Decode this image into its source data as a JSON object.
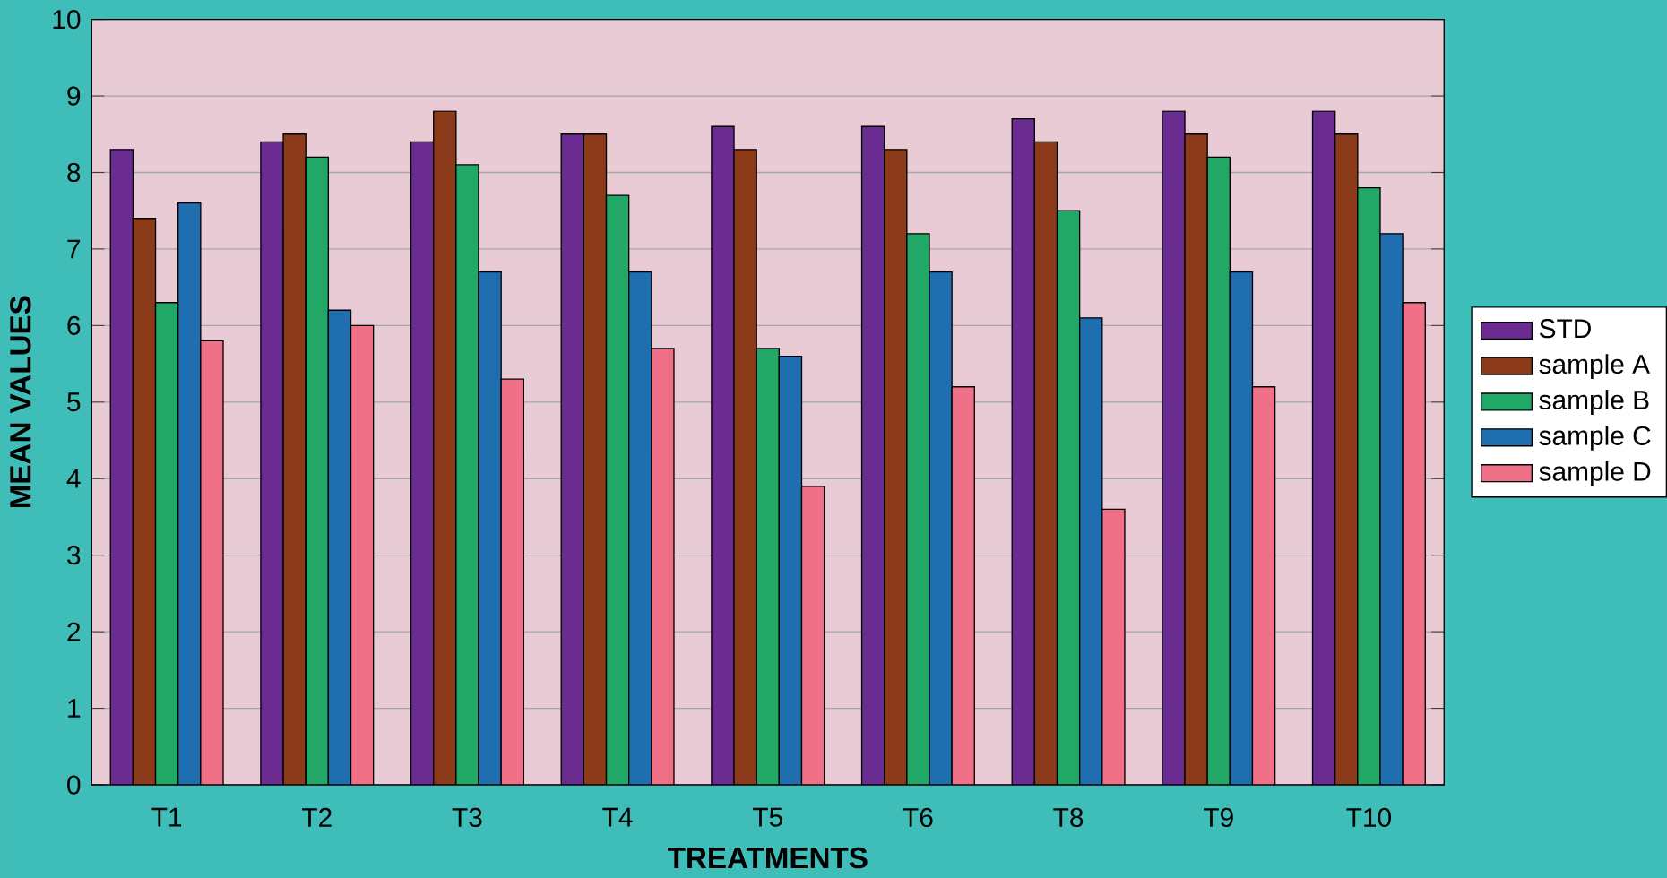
{
  "chart_data": {
    "type": "bar",
    "xlabel": "TREATMENTS",
    "ylabel": "MEAN VALUES",
    "categories": [
      "T1",
      "T2",
      "T3",
      "T4",
      "T5",
      "T6",
      "T8",
      "T9",
      "T10"
    ],
    "series": [
      {
        "name": "STD",
        "color": "#6a2c91",
        "values": [
          8.3,
          8.4,
          8.4,
          8.5,
          8.6,
          8.6,
          8.7,
          8.8,
          8.8
        ]
      },
      {
        "name": "sample A",
        "color": "#8b3a1a",
        "values": [
          7.4,
          8.5,
          8.8,
          8.5,
          8.3,
          8.3,
          8.4,
          8.5,
          8.5
        ]
      },
      {
        "name": "sample B",
        "color": "#22a866",
        "values": [
          6.3,
          8.2,
          8.1,
          7.7,
          5.7,
          7.2,
          7.5,
          8.2,
          7.8
        ]
      },
      {
        "name": "sample C",
        "color": "#1f6fb0",
        "values": [
          7.6,
          6.2,
          6.7,
          6.7,
          5.6,
          6.7,
          6.1,
          6.7,
          7.2
        ]
      },
      {
        "name": "sample D",
        "color": "#f07088",
        "values": [
          5.8,
          6.0,
          5.3,
          5.7,
          3.9,
          5.2,
          3.6,
          5.2,
          6.3
        ]
      }
    ],
    "ylim": [
      0,
      10
    ],
    "yticks": [
      0,
      1,
      2,
      3,
      4,
      5,
      6,
      7,
      8,
      9,
      10
    ],
    "grid": "y",
    "legend": "right"
  }
}
